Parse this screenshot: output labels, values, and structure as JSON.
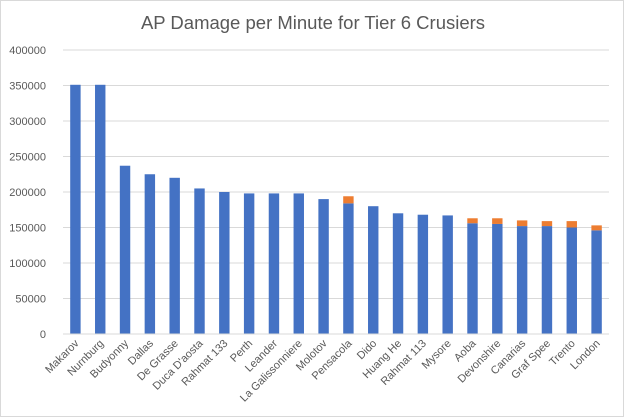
{
  "chart_data": {
    "type": "bar",
    "stacked": true,
    "title": "AP Damage per Minute for Tier 6 Crusiers",
    "xlabel": "",
    "ylabel": "",
    "ylim": [
      0,
      400000
    ],
    "yticks": [
      0,
      50000,
      100000,
      150000,
      200000,
      250000,
      300000,
      350000,
      400000
    ],
    "ytick_labels": [
      "0",
      "50000",
      "100000",
      "150000",
      "200000",
      "250000",
      "300000",
      "350000",
      "400000"
    ],
    "grid": true,
    "legend": "none",
    "categories": [
      "Makarov",
      "Nurnburg",
      "Budyonny",
      "Dallas",
      "De Grasse",
      "Duca D'aosta",
      "Rahmat 133",
      "Perth",
      "Leander",
      "La Galissonniere",
      "Molotov",
      "Pensacola",
      "Dido",
      "Huang He",
      "Rahmat 113",
      "Mysore",
      "Aoba",
      "Devonshire",
      "Canarias",
      "Graf Spee",
      "Trento",
      "London"
    ],
    "series": [
      {
        "color": "#4472c4",
        "values": [
          351000,
          351000,
          237000,
          225000,
          220000,
          205000,
          200000,
          198000,
          198000,
          198000,
          190000,
          184000,
          180000,
          170000,
          168000,
          167000,
          156000,
          155000,
          152000,
          152000,
          150000,
          146000
        ]
      },
      {
        "color": "#ed7d31",
        "values": [
          0,
          0,
          0,
          0,
          0,
          0,
          0,
          0,
          0,
          0,
          0,
          10000,
          0,
          0,
          0,
          0,
          7000,
          8000,
          8000,
          7000,
          9000,
          7000
        ]
      }
    ]
  }
}
